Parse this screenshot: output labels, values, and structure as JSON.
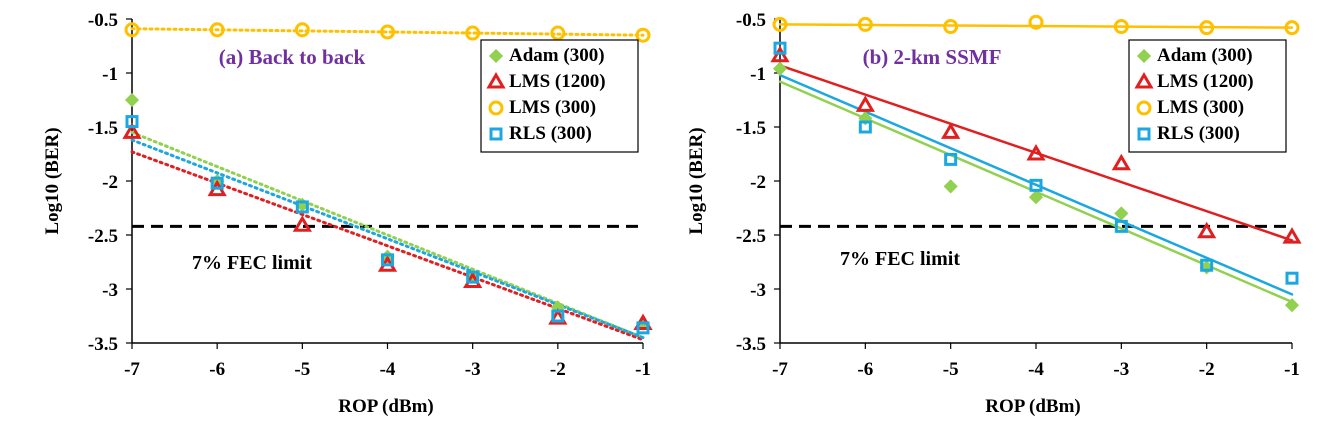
{
  "chart_data": [
    {
      "type": "scatter",
      "title": "(a) Back to back",
      "xlabel": "ROP (dBm)",
      "ylabel": "Log10 (BER)",
      "xlim": [
        -7,
        -1
      ],
      "ylim": [
        -3.5,
        -0.5
      ],
      "xticks": [
        "-7",
        "-6",
        "-5",
        "-4",
        "-3",
        "-2",
        "-1"
      ],
      "yticks": [
        "-0.5",
        "-1",
        "-1.5",
        "-2",
        "-2.5",
        "-3",
        "-3.5"
      ],
      "fit_style": "dotted",
      "threshold": {
        "label": "7% FEC limit",
        "value": -2.42
      },
      "x": [
        -7,
        -6,
        -5,
        -4,
        -3,
        -2,
        -1
      ],
      "series": [
        {
          "name": "Adam (300)",
          "color": "#92d050",
          "marker": "diamond",
          "values": [
            -1.25,
            -2.0,
            -2.22,
            -2.7,
            -2.88,
            -3.17,
            -3.32
          ],
          "fit": [
            -1.55,
            -3.45
          ]
        },
        {
          "name": "LMS (1200)",
          "color": "#e02020",
          "marker": "triangle",
          "values": [
            -1.55,
            -2.08,
            -2.41,
            -2.78,
            -2.93,
            -3.27,
            -3.32
          ],
          "fit": [
            -1.73,
            -3.47
          ]
        },
        {
          "name": "LMS (300)",
          "color": "#ffc000",
          "marker": "circle",
          "values": [
            -0.6,
            -0.6,
            -0.6,
            -0.62,
            -0.63,
            -0.63,
            -0.65
          ],
          "fit": [
            -0.59,
            -0.65
          ]
        },
        {
          "name": "RLS (300)",
          "color": "#1ca7e0",
          "marker": "square",
          "values": [
            -1.45,
            -2.02,
            -2.24,
            -2.73,
            -2.89,
            -3.25,
            -3.36
          ],
          "fit": [
            -1.62,
            -3.45
          ]
        }
      ]
    },
    {
      "type": "scatter",
      "title": "(b) 2-km SSMF",
      "xlabel": "ROP (dBm)",
      "ylabel": "Log10 (BER)",
      "xlim": [
        -7,
        -1
      ],
      "ylim": [
        -3.5,
        -0.5
      ],
      "xticks": [
        "-7",
        "-6",
        "-5",
        "-4",
        "-3",
        "-2",
        "-1"
      ],
      "yticks": [
        "-0.5",
        "-1",
        "-1.5",
        "-2",
        "-2.5",
        "-3",
        "-3.5"
      ],
      "fit_style": "solid",
      "threshold": {
        "label": "7% FEC limit",
        "value": -2.42
      },
      "x": [
        -7,
        -6,
        -5,
        -4,
        -3,
        -2,
        -1
      ],
      "series": [
        {
          "name": "Adam (300)",
          "color": "#92d050",
          "marker": "diamond",
          "values": [
            -0.96,
            -1.42,
            -2.05,
            -2.15,
            -2.3,
            -2.8,
            -3.15
          ],
          "fit": [
            -1.08,
            -3.12
          ]
        },
        {
          "name": "LMS (1200)",
          "color": "#e02020",
          "marker": "triangle",
          "values": [
            -0.84,
            -1.3,
            -1.55,
            -1.75,
            -1.84,
            -2.47,
            -2.52
          ],
          "fit": [
            -0.93,
            -2.55
          ]
        },
        {
          "name": "LMS (300)",
          "color": "#ffc000",
          "marker": "circle",
          "values": [
            -0.55,
            -0.55,
            -0.57,
            -0.53,
            -0.57,
            -0.58,
            -0.58
          ],
          "fit": [
            -0.55,
            -0.58
          ]
        },
        {
          "name": "RLS (300)",
          "color": "#1ca7e0",
          "marker": "square",
          "values": [
            -0.77,
            -1.5,
            -1.8,
            -2.04,
            -2.42,
            -2.78,
            -2.9
          ],
          "fit": [
            -1.02,
            -3.05
          ]
        }
      ]
    }
  ]
}
